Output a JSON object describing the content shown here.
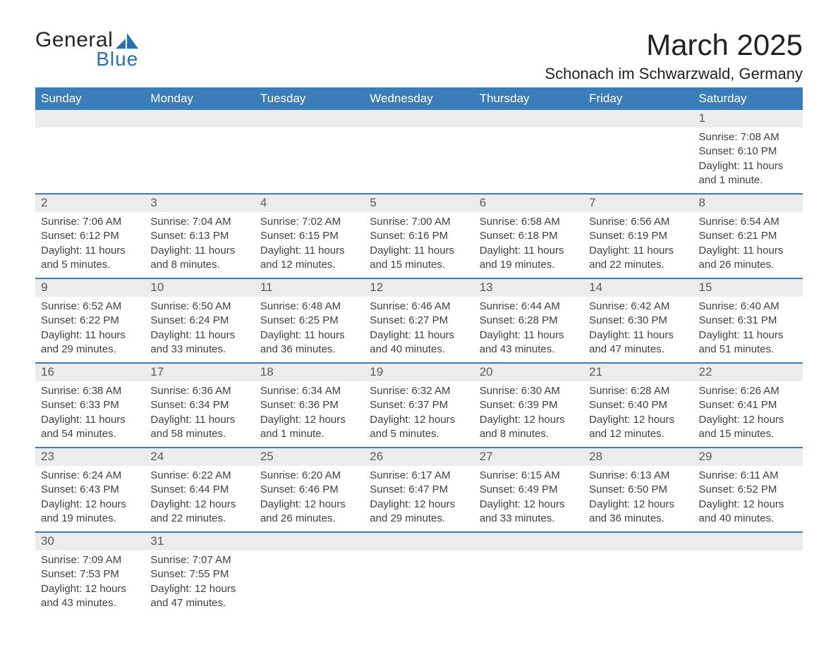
{
  "logo": {
    "text1": "General",
    "text2": "Blue",
    "shape_color": "#2b6fae",
    "text1_color": "#262626"
  },
  "title": "March 2025",
  "location": "Schonach im Schwarzwald, Germany",
  "header_bg": "#3a7db8",
  "header_text_color": "#ffffff",
  "stripe_bg": "#ececec",
  "border_color": "#3a7db8",
  "columns": [
    "Sunday",
    "Monday",
    "Tuesday",
    "Wednesday",
    "Thursday",
    "Friday",
    "Saturday"
  ],
  "weeks": [
    [
      null,
      null,
      null,
      null,
      null,
      null,
      {
        "n": "1",
        "sunrise": "7:08 AM",
        "sunset": "6:10 PM",
        "daylight": "11 hours and 1 minute."
      }
    ],
    [
      {
        "n": "2",
        "sunrise": "7:06 AM",
        "sunset": "6:12 PM",
        "daylight": "11 hours and 5 minutes."
      },
      {
        "n": "3",
        "sunrise": "7:04 AM",
        "sunset": "6:13 PM",
        "daylight": "11 hours and 8 minutes."
      },
      {
        "n": "4",
        "sunrise": "7:02 AM",
        "sunset": "6:15 PM",
        "daylight": "11 hours and 12 minutes."
      },
      {
        "n": "5",
        "sunrise": "7:00 AM",
        "sunset": "6:16 PM",
        "daylight": "11 hours and 15 minutes."
      },
      {
        "n": "6",
        "sunrise": "6:58 AM",
        "sunset": "6:18 PM",
        "daylight": "11 hours and 19 minutes."
      },
      {
        "n": "7",
        "sunrise": "6:56 AM",
        "sunset": "6:19 PM",
        "daylight": "11 hours and 22 minutes."
      },
      {
        "n": "8",
        "sunrise": "6:54 AM",
        "sunset": "6:21 PM",
        "daylight": "11 hours and 26 minutes."
      }
    ],
    [
      {
        "n": "9",
        "sunrise": "6:52 AM",
        "sunset": "6:22 PM",
        "daylight": "11 hours and 29 minutes."
      },
      {
        "n": "10",
        "sunrise": "6:50 AM",
        "sunset": "6:24 PM",
        "daylight": "11 hours and 33 minutes."
      },
      {
        "n": "11",
        "sunrise": "6:48 AM",
        "sunset": "6:25 PM",
        "daylight": "11 hours and 36 minutes."
      },
      {
        "n": "12",
        "sunrise": "6:46 AM",
        "sunset": "6:27 PM",
        "daylight": "11 hours and 40 minutes."
      },
      {
        "n": "13",
        "sunrise": "6:44 AM",
        "sunset": "6:28 PM",
        "daylight": "11 hours and 43 minutes."
      },
      {
        "n": "14",
        "sunrise": "6:42 AM",
        "sunset": "6:30 PM",
        "daylight": "11 hours and 47 minutes."
      },
      {
        "n": "15",
        "sunrise": "6:40 AM",
        "sunset": "6:31 PM",
        "daylight": "11 hours and 51 minutes."
      }
    ],
    [
      {
        "n": "16",
        "sunrise": "6:38 AM",
        "sunset": "6:33 PM",
        "daylight": "11 hours and 54 minutes."
      },
      {
        "n": "17",
        "sunrise": "6:36 AM",
        "sunset": "6:34 PM",
        "daylight": "11 hours and 58 minutes."
      },
      {
        "n": "18",
        "sunrise": "6:34 AM",
        "sunset": "6:36 PM",
        "daylight": "12 hours and 1 minute."
      },
      {
        "n": "19",
        "sunrise": "6:32 AM",
        "sunset": "6:37 PM",
        "daylight": "12 hours and 5 minutes."
      },
      {
        "n": "20",
        "sunrise": "6:30 AM",
        "sunset": "6:39 PM",
        "daylight": "12 hours and 8 minutes."
      },
      {
        "n": "21",
        "sunrise": "6:28 AM",
        "sunset": "6:40 PM",
        "daylight": "12 hours and 12 minutes."
      },
      {
        "n": "22",
        "sunrise": "6:26 AM",
        "sunset": "6:41 PM",
        "daylight": "12 hours and 15 minutes."
      }
    ],
    [
      {
        "n": "23",
        "sunrise": "6:24 AM",
        "sunset": "6:43 PM",
        "daylight": "12 hours and 19 minutes."
      },
      {
        "n": "24",
        "sunrise": "6:22 AM",
        "sunset": "6:44 PM",
        "daylight": "12 hours and 22 minutes."
      },
      {
        "n": "25",
        "sunrise": "6:20 AM",
        "sunset": "6:46 PM",
        "daylight": "12 hours and 26 minutes."
      },
      {
        "n": "26",
        "sunrise": "6:17 AM",
        "sunset": "6:47 PM",
        "daylight": "12 hours and 29 minutes."
      },
      {
        "n": "27",
        "sunrise": "6:15 AM",
        "sunset": "6:49 PM",
        "daylight": "12 hours and 33 minutes."
      },
      {
        "n": "28",
        "sunrise": "6:13 AM",
        "sunset": "6:50 PM",
        "daylight": "12 hours and 36 minutes."
      },
      {
        "n": "29",
        "sunrise": "6:11 AM",
        "sunset": "6:52 PM",
        "daylight": "12 hours and 40 minutes."
      }
    ],
    [
      {
        "n": "30",
        "sunrise": "7:09 AM",
        "sunset": "7:53 PM",
        "daylight": "12 hours and 43 minutes."
      },
      {
        "n": "31",
        "sunrise": "7:07 AM",
        "sunset": "7:55 PM",
        "daylight": "12 hours and 47 minutes."
      },
      null,
      null,
      null,
      null,
      null
    ]
  ],
  "labels": {
    "sunrise": "Sunrise:",
    "sunset": "Sunset:",
    "daylight": "Daylight:"
  }
}
